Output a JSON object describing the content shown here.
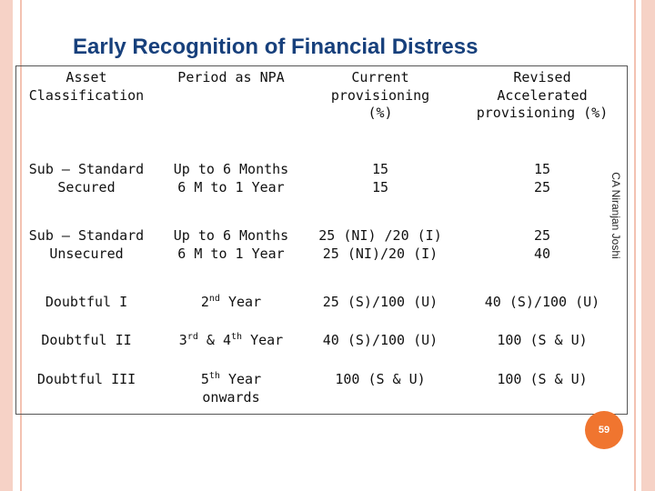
{
  "slide": {
    "title": "Early Recognition of Financial Distress",
    "side_text": "CA Niranjan Joshi",
    "page_number": "59"
  },
  "table": {
    "headers": {
      "asset_classification": "Asset\nClassification",
      "period_as_npa": "Period as NPA",
      "current_provisioning": "Current\nprovisioning\n(%)",
      "revised_provisioning": "Revised\nAccelerated\nprovisioning (%)"
    },
    "rows": [
      {
        "asset": "Sub – Standard\nSecured",
        "period": "Up to 6 Months\n6 M to 1 Year",
        "current": "15\n15",
        "revised": "15\n25"
      },
      {
        "asset": "Sub – Standard\nUnsecured",
        "period": "Up to 6 Months\n6 M to 1 Year",
        "current": "25 (NI) /20 (I)\n25 (NI)/20 (I)",
        "revised": "25\n40"
      },
      {
        "asset": "Doubtful I",
        "period": {
          "n1": "2",
          "s1": "nd",
          "t1": " Year"
        },
        "current": "25 (S)/100 (U)",
        "revised": "40 (S)/100 (U)"
      },
      {
        "asset": "Doubtful II",
        "period": {
          "n1": "3",
          "s1": "rd",
          "t1": " & ",
          "n2": "4",
          "s2": "th",
          "t2": " Year"
        },
        "current": "40 (S)/100 (U)",
        "revised": "100 (S & U)"
      },
      {
        "asset": "Doubtful III",
        "period": {
          "n1": "5",
          "s1": "th",
          "t1": " Year\nonwards"
        },
        "current": "100 (S & U)",
        "revised": "100 (S & U)"
      }
    ]
  }
}
